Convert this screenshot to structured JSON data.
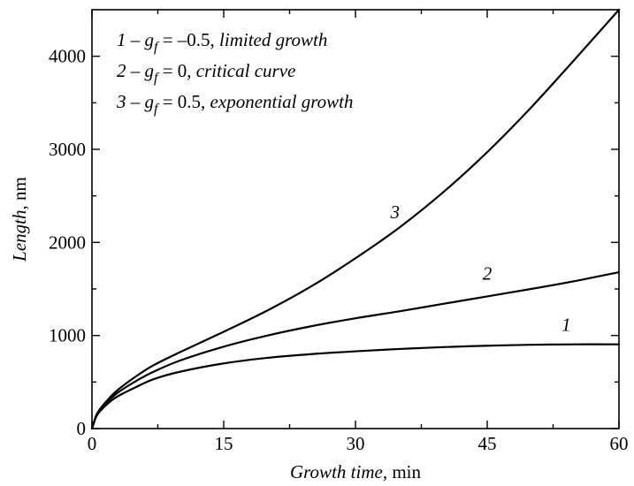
{
  "chart_data": {
    "type": "line",
    "xlabel": {
      "italic": "Growth time",
      "rest": ", min"
    },
    "ylabel": {
      "italic": "Length",
      "rest": ", nm"
    },
    "xlim": [
      0,
      60
    ],
    "ylim": [
      0,
      4500
    ],
    "x_major_ticks": [
      0,
      15,
      30,
      45,
      60
    ],
    "x_minor_ticks": [
      7.5,
      22.5,
      37.5,
      52.5
    ],
    "y_major_ticks": [
      0,
      1000,
      2000,
      3000,
      4000
    ],
    "y_minor_ticks": [
      500,
      1500,
      2500,
      3500
    ],
    "x_tick_labels": [
      "0",
      "15",
      "30",
      "45",
      "60"
    ],
    "y_tick_labels": [
      "0",
      "1000",
      "2000",
      "3000",
      "4000"
    ],
    "grid": false,
    "legend_position": "top-left",
    "legend": [
      {
        "num": "1",
        "dash": " – ",
        "sym": "g",
        "sub": "f",
        "eq": " = –0.5, ",
        "desc": "limited growth"
      },
      {
        "num": "2",
        "dash": " – ",
        "sym": "g",
        "sub": "f",
        "eq": " = 0, ",
        "desc": "critical curve"
      },
      {
        "num": "3",
        "dash": " – ",
        "sym": "g",
        "sub": "f",
        "eq": " = 0.5, ",
        "desc": "exponential growth"
      }
    ],
    "series": [
      {
        "label": "1",
        "label_at": [
          54,
          1050
        ],
        "x": [
          0,
          0.5,
          1,
          2,
          3,
          5,
          7,
          10,
          15,
          20,
          25,
          30,
          35,
          40,
          45,
          50,
          55,
          60
        ],
        "y": [
          0,
          130,
          195,
          285,
          350,
          445,
          530,
          610,
          700,
          760,
          800,
          830,
          855,
          875,
          890,
          900,
          905,
          905
        ]
      },
      {
        "label": "2",
        "label_at": [
          45,
          1600
        ],
        "x": [
          0,
          0.5,
          1,
          2,
          3,
          5,
          7,
          10,
          15,
          20,
          25,
          30,
          35,
          40,
          45,
          50,
          55,
          60
        ],
        "y": [
          0,
          140,
          210,
          310,
          390,
          510,
          610,
          730,
          880,
          1000,
          1100,
          1185,
          1260,
          1340,
          1420,
          1500,
          1585,
          1680
        ]
      },
      {
        "label": "3",
        "label_at": [
          34.5,
          2260
        ],
        "x": [
          0,
          0.5,
          1,
          2,
          3,
          5,
          7,
          10,
          15,
          20,
          25,
          30,
          35,
          40,
          45,
          50,
          55,
          60
        ],
        "y": [
          0,
          145,
          220,
          330,
          420,
          560,
          680,
          820,
          1040,
          1270,
          1530,
          1830,
          2160,
          2540,
          2970,
          3450,
          3970,
          4520
        ]
      }
    ]
  }
}
